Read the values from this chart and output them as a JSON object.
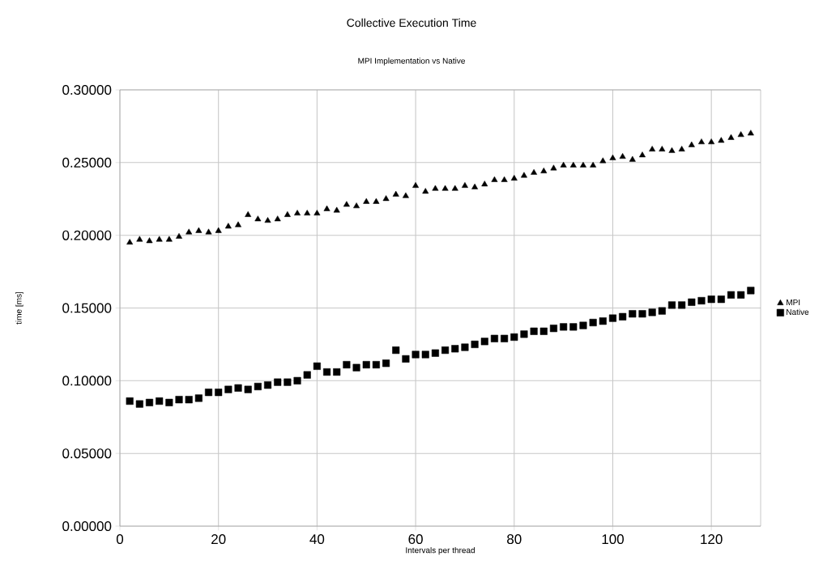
{
  "chart_data": {
    "type": "scatter",
    "title": "Collective Execution Time",
    "subtitle": "MPI Implementation vs Native",
    "xlabel": "Intervals per thread",
    "ylabel": "time [ms]",
    "x": [
      2,
      4,
      6,
      8,
      10,
      12,
      14,
      16,
      18,
      20,
      22,
      24,
      26,
      28,
      30,
      32,
      34,
      36,
      38,
      40,
      42,
      44,
      46,
      48,
      50,
      52,
      54,
      56,
      58,
      60,
      62,
      64,
      66,
      68,
      70,
      72,
      74,
      76,
      78,
      80,
      82,
      84,
      86,
      88,
      90,
      92,
      94,
      96,
      98,
      100,
      102,
      104,
      106,
      108,
      110,
      112,
      114,
      116,
      118,
      120,
      122,
      124,
      126,
      128
    ],
    "series": [
      {
        "name": "MPI",
        "color": "#000000",
        "marker": "triangle",
        "values": [
          0.195,
          0.197,
          0.196,
          0.197,
          0.197,
          0.199,
          0.202,
          0.203,
          0.202,
          0.203,
          0.206,
          0.207,
          0.214,
          0.211,
          0.21,
          0.211,
          0.214,
          0.215,
          0.215,
          0.215,
          0.218,
          0.217,
          0.221,
          0.22,
          0.223,
          0.223,
          0.225,
          0.228,
          0.227,
          0.234,
          0.23,
          0.232,
          0.232,
          0.232,
          0.234,
          0.233,
          0.235,
          0.238,
          0.238,
          0.239,
          0.241,
          0.243,
          0.244,
          0.246,
          0.248,
          0.248,
          0.248,
          0.248,
          0.251,
          0.253,
          0.254,
          0.252,
          0.255,
          0.259,
          0.259,
          0.258,
          0.259,
          0.262,
          0.264,
          0.264,
          0.265,
          0.267,
          0.269,
          0.27
        ]
      },
      {
        "name": "Native",
        "color": "#000000",
        "marker": "square",
        "values": [
          0.086,
          0.084,
          0.085,
          0.086,
          0.085,
          0.087,
          0.087,
          0.088,
          0.092,
          0.092,
          0.094,
          0.095,
          0.094,
          0.096,
          0.097,
          0.099,
          0.099,
          0.1,
          0.104,
          0.11,
          0.106,
          0.106,
          0.111,
          0.109,
          0.111,
          0.111,
          0.112,
          0.121,
          0.115,
          0.118,
          0.118,
          0.119,
          0.121,
          0.122,
          0.123,
          0.125,
          0.127,
          0.129,
          0.129,
          0.13,
          0.132,
          0.134,
          0.134,
          0.136,
          0.137,
          0.137,
          0.138,
          0.14,
          0.141,
          0.143,
          0.144,
          0.146,
          0.146,
          0.147,
          0.148,
          0.152,
          0.152,
          0.154,
          0.155,
          0.156,
          0.156,
          0.159,
          0.159,
          0.162
        ]
      }
    ],
    "xlim": [
      0,
      130
    ],
    "xticks": [
      0,
      20,
      40,
      60,
      80,
      100,
      120
    ],
    "ylim": [
      0,
      0.3
    ],
    "yticks": [
      {
        "value": 0,
        "label": "0.00000"
      },
      {
        "value": 0.05,
        "label": "0.05000"
      },
      {
        "value": 0.1,
        "label": "0.10000"
      },
      {
        "value": 0.15,
        "label": "0.15000"
      },
      {
        "value": 0.2,
        "label": "0.20000"
      },
      {
        "value": 0.25,
        "label": "0.25000"
      },
      {
        "value": 0.3,
        "label": "0.30000"
      }
    ],
    "grid": true,
    "legend": "right"
  }
}
